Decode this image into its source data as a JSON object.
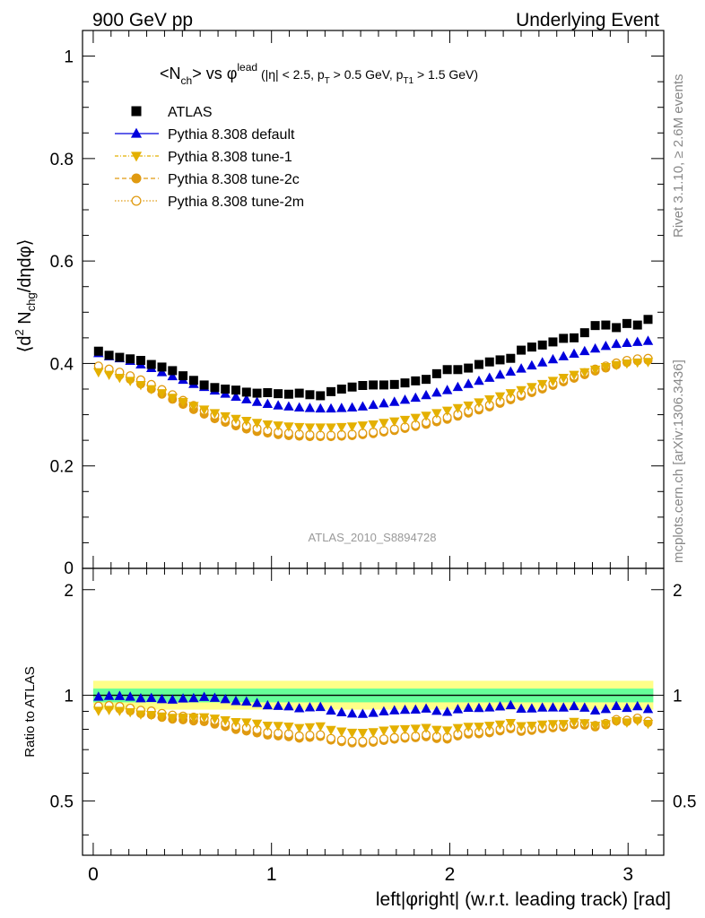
{
  "header": {
    "left": "900 GeV pp",
    "right": "Underlying Event"
  },
  "side_labels": {
    "rivet": "Rivet 3.1.10, ≥ 2.6M events",
    "mcplots": "mcplots.cern.ch [arXiv:1306.3436]"
  },
  "chart_data": {
    "type": "scatter",
    "title": {
      "prefix": "<N",
      "sub1": "ch",
      "mid": "> vs φ",
      "sup1": "lead",
      "rest1": " (|η| < 2.5, p",
      "sub2": "T",
      "rest2": " > 0.5 GeV, p",
      "sub3": "T1",
      "rest3": " > 1.5 GeV)"
    },
    "watermark": "ATLAS_2010_S8894728",
    "ylabel_main": {
      "p1": "⟨d",
      "sup": "2",
      "p2": " N",
      "sub": "chg",
      "p3": "/dηdφ⟩"
    },
    "ylabel_ratio": "Ratio to ATLAS",
    "xlabel": "left|φright| (w.r.t. leading track) [rad]",
    "xlim": [
      -0.06,
      3.2
    ],
    "ylim_main": [
      0,
      1.05
    ],
    "ylim_ratio": [
      0.35,
      2.3
    ],
    "x_ticks": [
      "0",
      "1",
      "2",
      "3"
    ],
    "y_ticks_main": [
      "0.2",
      "0.4",
      "0.6",
      "0.8",
      "1"
    ],
    "y_ticks_main_bottom": "0",
    "y_ticks_ratio": [
      "0.5",
      "1",
      "2"
    ],
    "legend_position": "top-left",
    "series": [
      {
        "name": "ATLAS",
        "color": "#000000",
        "marker": "square",
        "values": [
          0.424,
          0.416,
          0.412,
          0.409,
          0.406,
          0.398,
          0.393,
          0.386,
          0.376,
          0.367,
          0.358,
          0.353,
          0.35,
          0.348,
          0.344,
          0.342,
          0.343,
          0.341,
          0.34,
          0.342,
          0.339,
          0.337,
          0.345,
          0.35,
          0.354,
          0.357,
          0.358,
          0.358,
          0.359,
          0.362,
          0.366,
          0.369,
          0.38,
          0.388,
          0.388,
          0.391,
          0.398,
          0.403,
          0.407,
          0.41,
          0.426,
          0.432,
          0.436,
          0.442,
          0.449,
          0.45,
          0.46,
          0.474,
          0.475,
          0.47,
          0.478,
          0.475,
          0.486
        ]
      },
      {
        "name": "Pythia 8.308 default",
        "color": "#0000dd",
        "marker": "triangle-up",
        "values": [
          0.42,
          0.414,
          0.41,
          0.405,
          0.398,
          0.391,
          0.383,
          0.375,
          0.368,
          0.36,
          0.354,
          0.347,
          0.341,
          0.335,
          0.33,
          0.325,
          0.321,
          0.318,
          0.316,
          0.314,
          0.313,
          0.312,
          0.312,
          0.313,
          0.314,
          0.316,
          0.319,
          0.322,
          0.325,
          0.329,
          0.333,
          0.338,
          0.343,
          0.348,
          0.354,
          0.36,
          0.366,
          0.372,
          0.378,
          0.384,
          0.39,
          0.396,
          0.402,
          0.408,
          0.414,
          0.419,
          0.424,
          0.429,
          0.434,
          0.438,
          0.44,
          0.442,
          0.444
        ]
      },
      {
        "name": "Pythia 8.308 tune-1",
        "color": "#e4b000",
        "marker": "triangle-down",
        "values": [
          0.383,
          0.378,
          0.372,
          0.366,
          0.358,
          0.35,
          0.342,
          0.333,
          0.325,
          0.317,
          0.31,
          0.303,
          0.297,
          0.292,
          0.288,
          0.284,
          0.281,
          0.279,
          0.277,
          0.276,
          0.275,
          0.275,
          0.275,
          0.276,
          0.277,
          0.279,
          0.281,
          0.284,
          0.287,
          0.29,
          0.294,
          0.298,
          0.303,
          0.308,
          0.313,
          0.318,
          0.324,
          0.33,
          0.336,
          0.342,
          0.348,
          0.354,
          0.36,
          0.366,
          0.372,
          0.378,
          0.383,
          0.388,
          0.393,
          0.397,
          0.4,
          0.402,
          0.403
        ]
      },
      {
        "name": "Pythia 8.308 tune-2c",
        "color": "#e09a10",
        "marker": "circle",
        "values": [
          0.392,
          0.385,
          0.377,
          0.369,
          0.36,
          0.35,
          0.34,
          0.33,
          0.32,
          0.31,
          0.301,
          0.292,
          0.285,
          0.278,
          0.272,
          0.267,
          0.264,
          0.261,
          0.259,
          0.258,
          0.257,
          0.257,
          0.257,
          0.258,
          0.259,
          0.261,
          0.263,
          0.266,
          0.269,
          0.273,
          0.277,
          0.281,
          0.286,
          0.291,
          0.297,
          0.303,
          0.309,
          0.315,
          0.322,
          0.329,
          0.336,
          0.343,
          0.35,
          0.357,
          0.364,
          0.371,
          0.378,
          0.385,
          0.391,
          0.397,
          0.402,
          0.405,
          0.406
        ]
      },
      {
        "name": "Pythia 8.308 tune-2m",
        "color": "#e09a10",
        "marker": "circle-open",
        "values": [
          0.395,
          0.389,
          0.383,
          0.376,
          0.368,
          0.359,
          0.349,
          0.339,
          0.328,
          0.318,
          0.308,
          0.299,
          0.291,
          0.284,
          0.278,
          0.273,
          0.269,
          0.266,
          0.264,
          0.262,
          0.261,
          0.26,
          0.26,
          0.261,
          0.262,
          0.264,
          0.266,
          0.269,
          0.272,
          0.276,
          0.28,
          0.285,
          0.29,
          0.295,
          0.301,
          0.307,
          0.313,
          0.319,
          0.326,
          0.333,
          0.34,
          0.347,
          0.354,
          0.361,
          0.368,
          0.375,
          0.382,
          0.389,
          0.395,
          0.401,
          0.406,
          0.409,
          0.41
        ]
      }
    ],
    "band_colors": {
      "inner": "#66ff99",
      "outer": "#ffff88"
    }
  }
}
